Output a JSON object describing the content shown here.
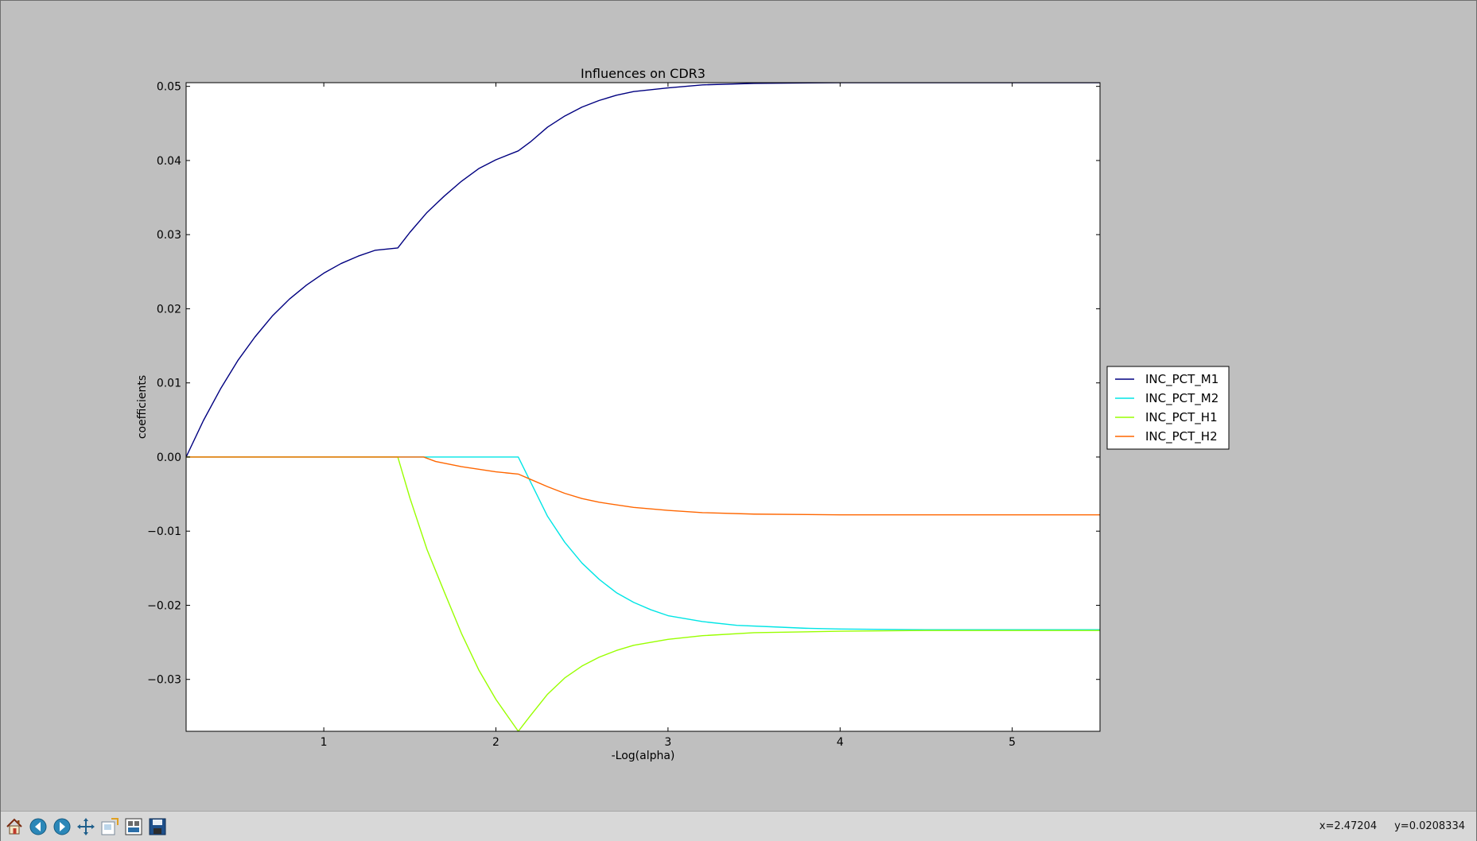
{
  "toolbar": {
    "buttons": [
      {
        "name": "home",
        "icon": "home-icon"
      },
      {
        "name": "back",
        "icon": "back-arrow-icon"
      },
      {
        "name": "forward",
        "icon": "forward-arrow-icon"
      },
      {
        "name": "pan",
        "icon": "pan-icon"
      },
      {
        "name": "zoom",
        "icon": "zoom-icon"
      },
      {
        "name": "configure-subplots",
        "icon": "subplots-icon"
      },
      {
        "name": "save",
        "icon": "save-icon"
      }
    ],
    "x_readout": "x=2.47204",
    "y_readout": "y=0.0208334"
  },
  "chart_data": {
    "type": "line",
    "title": "Influences on CDR3",
    "xlabel": "-Log(alpha)",
    "ylabel": "coefficients",
    "xlim": [
      0.2,
      5.51
    ],
    "ylim": [
      -0.037,
      0.0505
    ],
    "xticks": [
      1,
      2,
      3,
      4,
      5
    ],
    "xtick_labels": [
      "1",
      "2",
      "3",
      "4",
      "5"
    ],
    "yticks": [
      0.05,
      0.04,
      0.03,
      0.02,
      0.01,
      0.0,
      -0.01,
      -0.02,
      -0.03
    ],
    "ytick_labels": [
      "0.05",
      "0.04",
      "0.03",
      "0.02",
      "0.01",
      "0.00",
      "−0.01",
      "−0.02",
      "−0.03"
    ],
    "grid": false,
    "legend_position": "right, outside plot",
    "series": [
      {
        "name": "INC_PCT_M1",
        "color": "#000080",
        "points": [
          [
            0.2,
            0.0
          ],
          [
            0.3,
            0.0049
          ],
          [
            0.4,
            0.0092
          ],
          [
            0.5,
            0.013
          ],
          [
            0.6,
            0.0162
          ],
          [
            0.7,
            0.019
          ],
          [
            0.8,
            0.0213
          ],
          [
            0.9,
            0.0232
          ],
          [
            1.0,
            0.0248
          ],
          [
            1.1,
            0.0261
          ],
          [
            1.2,
            0.0271
          ],
          [
            1.3,
            0.0279
          ],
          [
            1.43,
            0.0282
          ],
          [
            1.5,
            0.0303
          ],
          [
            1.6,
            0.033
          ],
          [
            1.7,
            0.0352
          ],
          [
            1.8,
            0.0372
          ],
          [
            1.9,
            0.0389
          ],
          [
            2.0,
            0.0401
          ],
          [
            2.13,
            0.0413
          ],
          [
            2.2,
            0.0425
          ],
          [
            2.3,
            0.0445
          ],
          [
            2.4,
            0.046
          ],
          [
            2.5,
            0.0472
          ],
          [
            2.6,
            0.0481
          ],
          [
            2.7,
            0.0488
          ],
          [
            2.8,
            0.0493
          ],
          [
            3.0,
            0.0498
          ],
          [
            3.2,
            0.0502
          ],
          [
            3.5,
            0.0504
          ],
          [
            4.0,
            0.0505
          ],
          [
            4.5,
            0.0505
          ],
          [
            5.0,
            0.0505
          ],
          [
            5.51,
            0.0505
          ]
        ]
      },
      {
        "name": "INC_PCT_M2",
        "color": "#00e5e5",
        "points": [
          [
            0.2,
            0.0
          ],
          [
            2.13,
            0.0
          ],
          [
            2.2,
            -0.0033
          ],
          [
            2.3,
            -0.008
          ],
          [
            2.4,
            -0.0115
          ],
          [
            2.5,
            -0.0143
          ],
          [
            2.6,
            -0.0165
          ],
          [
            2.7,
            -0.0183
          ],
          [
            2.8,
            -0.0196
          ],
          [
            2.9,
            -0.0206
          ],
          [
            3.0,
            -0.0214
          ],
          [
            3.2,
            -0.0222
          ],
          [
            3.4,
            -0.0227
          ],
          [
            3.6,
            -0.0229
          ],
          [
            3.8,
            -0.0231
          ],
          [
            4.0,
            -0.0232
          ],
          [
            4.5,
            -0.0233
          ],
          [
            5.0,
            -0.0233
          ],
          [
            5.51,
            -0.0233
          ]
        ]
      },
      {
        "name": "INC_PCT_H1",
        "color": "#99ff00",
        "points": [
          [
            0.2,
            0.0
          ],
          [
            1.43,
            0.0
          ],
          [
            1.5,
            -0.0055
          ],
          [
            1.6,
            -0.0125
          ],
          [
            1.7,
            -0.0182
          ],
          [
            1.8,
            -0.0238
          ],
          [
            1.9,
            -0.0287
          ],
          [
            2.0,
            -0.0327
          ],
          [
            2.13,
            -0.037
          ],
          [
            2.2,
            -0.0349
          ],
          [
            2.3,
            -0.032
          ],
          [
            2.4,
            -0.0298
          ],
          [
            2.5,
            -0.0282
          ],
          [
            2.6,
            -0.027
          ],
          [
            2.7,
            -0.0261
          ],
          [
            2.8,
            -0.0254
          ],
          [
            3.0,
            -0.0246
          ],
          [
            3.2,
            -0.0241
          ],
          [
            3.5,
            -0.0237
          ],
          [
            4.0,
            -0.0235
          ],
          [
            4.5,
            -0.0234
          ],
          [
            5.0,
            -0.0234
          ],
          [
            5.51,
            -0.0234
          ]
        ]
      },
      {
        "name": "INC_PCT_H2",
        "color": "#ff6600",
        "points": [
          [
            0.2,
            0.0
          ],
          [
            1.58,
            0.0
          ],
          [
            1.65,
            -0.0006
          ],
          [
            1.8,
            -0.0013
          ],
          [
            2.0,
            -0.002
          ],
          [
            2.13,
            -0.0023
          ],
          [
            2.2,
            -0.003
          ],
          [
            2.3,
            -0.004
          ],
          [
            2.4,
            -0.0049
          ],
          [
            2.5,
            -0.0056
          ],
          [
            2.6,
            -0.0061
          ],
          [
            2.8,
            -0.0068
          ],
          [
            3.0,
            -0.0072
          ],
          [
            3.2,
            -0.0075
          ],
          [
            3.5,
            -0.0077
          ],
          [
            4.0,
            -0.0078
          ],
          [
            4.5,
            -0.0078
          ],
          [
            5.0,
            -0.0078
          ],
          [
            5.51,
            -0.0078
          ]
        ]
      }
    ]
  }
}
